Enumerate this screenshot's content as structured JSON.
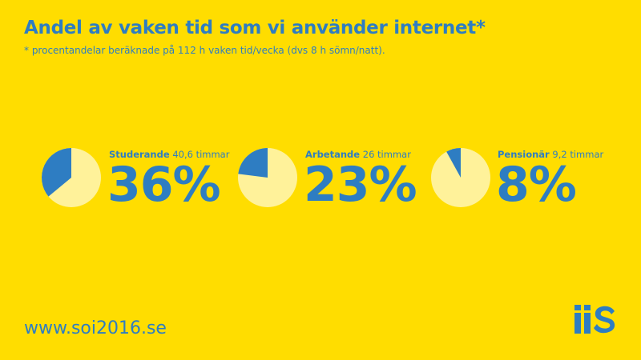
{
  "header": {
    "title": "Andel av vaken tid som vi använder internet*",
    "subtitle": "* procentandelar beräknade på 112 h vaken tid/vecka (dvs 8 h sömn/natt)."
  },
  "chart_data": {
    "type": "pie",
    "groups": [
      {
        "name": "Studerande",
        "detail": "40,6 timmar",
        "percent_label": "36%",
        "value": 36
      },
      {
        "name": "Arbetande",
        "detail": "26 timmar",
        "percent_label": "23%",
        "value": 23
      },
      {
        "name": "Pensionär",
        "detail": "9,2 timmar",
        "percent_label": "8%",
        "value": 8
      }
    ]
  },
  "colors": {
    "background": "#FFDD00",
    "accent": "#2E7DC2",
    "pie_rest": "#FFF29A"
  },
  "footer": {
    "url": "www.soi2016.se",
    "logo_icon": "iis-logo-icon"
  }
}
